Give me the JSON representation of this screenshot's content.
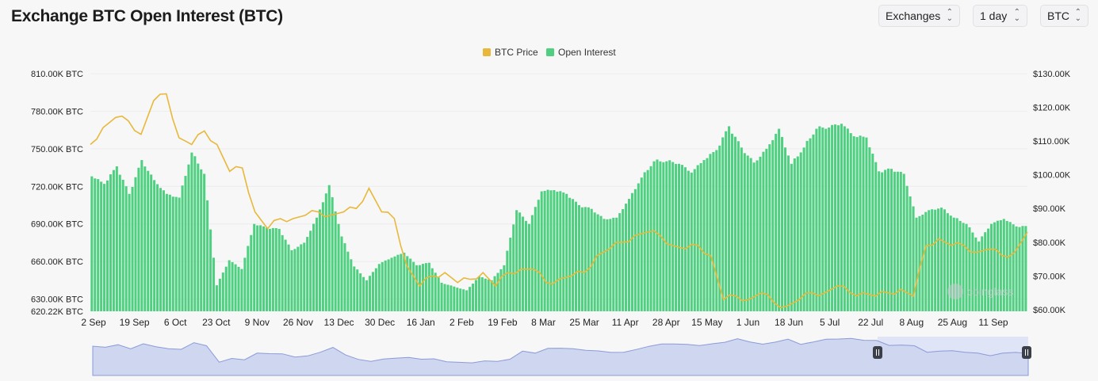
{
  "header": {
    "title": "Exchange BTC Open Interest (BTC)",
    "exchanges_label": "Exchanges",
    "interval_label": "1 day",
    "coin_label": "BTC"
  },
  "colors": {
    "price": "#e8b83a",
    "open_interest": "#4fcf80",
    "navigator_fill": "#cfd6f0",
    "navigator_line": "#8a9bd8",
    "navigator_selection": "#dfe4f7"
  },
  "chart_data": {
    "type": "bar",
    "title": "Exchange BTC Open Interest (BTC)",
    "legend": [
      "BTC Price",
      "Open Interest"
    ],
    "legend_position": "top-center",
    "x_labels": [
      "2 Sep",
      "19 Sep",
      "6 Oct",
      "23 Oct",
      "9 Nov",
      "26 Nov",
      "13 Dec",
      "30 Dec",
      "16 Jan",
      "2 Feb",
      "19 Feb",
      "8 Mar",
      "25 Mar",
      "11 Apr",
      "28 Apr",
      "15 May",
      "1 Jun",
      "18 Jun",
      "5 Jul",
      "22 Jul",
      "8 Aug",
      "25 Aug",
      "11 Sep"
    ],
    "y_left": {
      "label_unit": "BTC",
      "ticks": [
        "810.00K BTC",
        "780.00K BTC",
        "750.00K BTC",
        "720.00K BTC",
        "690.00K BTC",
        "660.00K BTC",
        "630.00K BTC",
        "620.22K BTC"
      ],
      "range": [
        620220,
        810000
      ]
    },
    "y_right": {
      "ticks": [
        "$130.00K",
        "$120.00K",
        "$110.00K",
        "$100.00K",
        "$90.00K",
        "$80.00K",
        "$70.00K",
        "$60.00K"
      ],
      "range": [
        59500,
        130000
      ]
    },
    "series": [
      {
        "name": "Open Interest",
        "axis": "left",
        "sampling": "every 4 days",
        "values": [
          728000,
          722000,
          736000,
          714000,
          741000,
          725000,
          714000,
          711000,
          747000,
          730000,
          641000,
          661000,
          654000,
          690000,
          687000,
          686000,
          669000,
          675000,
          695000,
          721000,
          680000,
          656000,
          645000,
          658000,
          663000,
          667000,
          657000,
          659000,
          643000,
          640000,
          637000,
          648000,
          645000,
          657000,
          701000,
          690000,
          716000,
          717000,
          714000,
          705000,
          702000,
          694000,
          695000,
          710000,
          727000,
          740000,
          740000,
          738000,
          731000,
          741000,
          749000,
          768000,
          751000,
          739000,
          750000,
          766000,
          738000,
          751000,
          766000,
          767000,
          770000,
          760000,
          759000,
          732000,
          734000,
          730000,
          695000,
          701000,
          703000,
          695000,
          690000,
          676000,
          690000,
          694000,
          688000
        ]
      },
      {
        "name": "BTC Price",
        "axis": "right",
        "sampling": "every 4 days",
        "values": [
          109000,
          114000,
          117000,
          116000,
          112000,
          122000,
          124000,
          111000,
          109000,
          113000,
          109000,
          101000,
          102000,
          89000,
          84000,
          87000,
          87000,
          88000,
          89000,
          88000,
          89000,
          90000,
          96000,
          89000,
          87000,
          73000,
          67000,
          70000,
          71000,
          68000,
          69000,
          71000,
          67000,
          71000,
          72000,
          72000,
          68000,
          69000,
          70000,
          71000,
          76000,
          78000,
          80000,
          82000,
          83000,
          82000,
          79000,
          78000,
          79000,
          76000,
          63000,
          64000,
          63000,
          65000,
          62000,
          61000,
          63000,
          65000,
          65000,
          67000,
          65000,
          65000,
          64000,
          65000,
          66000,
          64000,
          79000,
          81000,
          79000,
          79000,
          77000,
          78000,
          76000,
          77000,
          83000
        ]
      }
    ],
    "navigator": {
      "selection": [
        "25 Aug",
        "11 Sep"
      ]
    },
    "watermark": "coinglass"
  }
}
